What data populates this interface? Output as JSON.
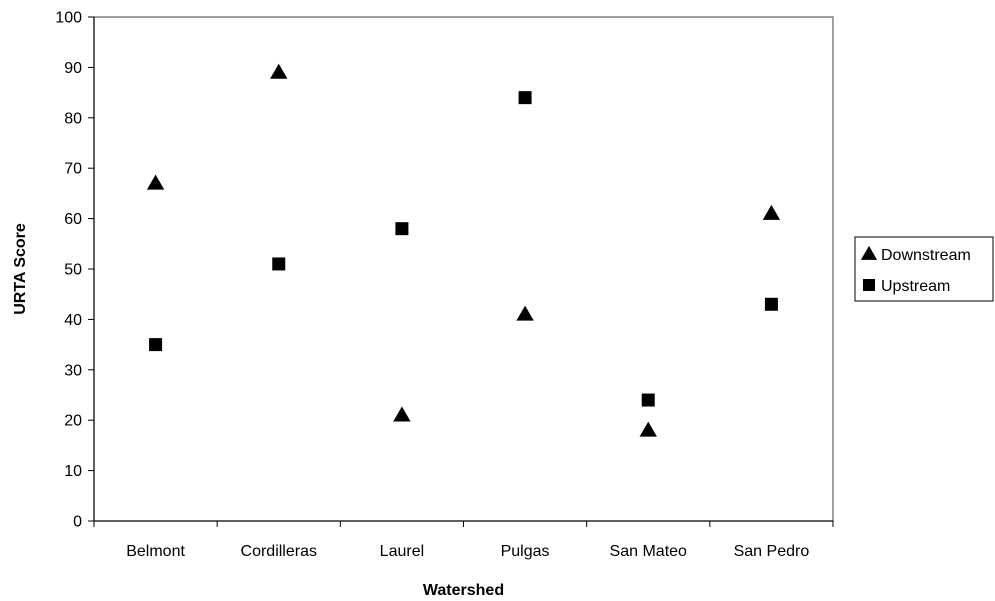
{
  "chart_data": {
    "type": "scatter",
    "categories": [
      "Belmont",
      "Cordilleras",
      "Laurel",
      "Pulgas",
      "San Mateo",
      "San Pedro"
    ],
    "series": [
      {
        "name": "Downstream",
        "marker": "triangle",
        "color": "#000000",
        "values": [
          67,
          89,
          21,
          41,
          18,
          61
        ]
      },
      {
        "name": "Upstream",
        "marker": "square",
        "color": "#000000",
        "values": [
          35,
          51,
          58,
          84,
          24,
          43
        ]
      }
    ],
    "xlabel": "Watershed",
    "ylabel": "URTA Score",
    "ylim": [
      0,
      100
    ],
    "yticks": [
      0,
      10,
      20,
      30,
      40,
      50,
      60,
      70,
      80,
      90,
      100
    ],
    "grid": false,
    "legend_position": "right"
  }
}
